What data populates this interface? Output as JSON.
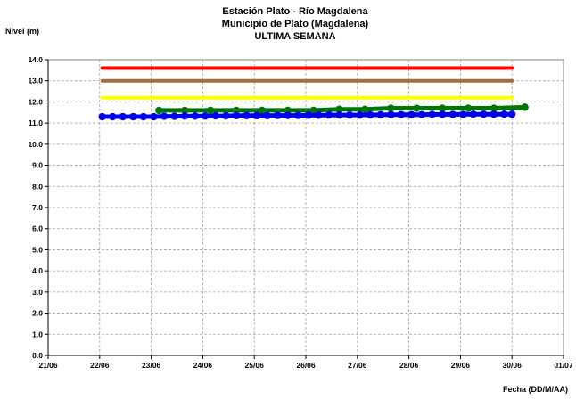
{
  "chart_data": {
    "type": "line",
    "title": [
      "Estación Plato - Río Magdalena",
      "Municipio de Plato (Magdalena)",
      "ULTIMA SEMANA"
    ],
    "ylabel": "Nivel (m)",
    "xlabel": "Fecha (DD/M/AA)",
    "ylim": [
      0,
      14
    ],
    "y_ticks": [
      "0.0",
      "1.0",
      "2.0",
      "3.0",
      "4.0",
      "5.0",
      "6.0",
      "7.0",
      "8.0",
      "9.0",
      "10.0",
      "11.0",
      "12.0",
      "13.0",
      "14.0"
    ],
    "x_ticks": [
      "21/06",
      "22/06",
      "23/06",
      "24/06",
      "25/06",
      "26/06",
      "27/06",
      "28/06",
      "29/06",
      "30/06",
      "01/07"
    ],
    "xlim": [
      0,
      10
    ],
    "grid": true,
    "legend": "none",
    "series": [
      {
        "color": "#ff0000",
        "x": [
          1.05,
          9.0
        ],
        "y": [
          13.6,
          13.6
        ],
        "markers": false
      },
      {
        "color": "#a0703a",
        "x": [
          1.05,
          9.0
        ],
        "y": [
          13.0,
          13.0
        ],
        "markers": false
      },
      {
        "color": "#ffff00",
        "x": [
          1.05,
          9.0
        ],
        "y": [
          12.2,
          12.2
        ],
        "markers": false
      },
      {
        "color": "#007700",
        "x": [
          2.15,
          2.65,
          3.15,
          3.65,
          4.15,
          4.65,
          5.15,
          5.65,
          6.15,
          6.65,
          7.15,
          7.65,
          8.15,
          8.65,
          9.25
        ],
        "y": [
          11.6,
          11.6,
          11.6,
          11.6,
          11.6,
          11.6,
          11.6,
          11.65,
          11.65,
          11.7,
          11.7,
          11.7,
          11.7,
          11.7,
          11.75
        ],
        "markers": true
      },
      {
        "color": "#0000ee",
        "x": [
          1.05,
          1.25,
          1.45,
          1.65,
          1.85,
          2.05,
          2.25,
          2.45,
          2.65,
          2.85,
          3.05,
          3.25,
          3.45,
          3.65,
          3.85,
          4.05,
          4.25,
          4.45,
          4.65,
          4.85,
          5.05,
          5.25,
          5.45,
          5.65,
          5.85,
          6.05,
          6.25,
          6.45,
          6.65,
          6.85,
          7.05,
          7.25,
          7.45,
          7.65,
          7.85,
          8.05,
          8.25,
          8.45,
          8.65,
          8.85,
          9.0
        ],
        "y": [
          11.3,
          11.3,
          11.3,
          11.3,
          11.3,
          11.3,
          11.32,
          11.32,
          11.33,
          11.33,
          11.33,
          11.34,
          11.34,
          11.35,
          11.35,
          11.35,
          11.35,
          11.36,
          11.36,
          11.36,
          11.37,
          11.37,
          11.38,
          11.38,
          11.38,
          11.38,
          11.39,
          11.39,
          11.4,
          11.4,
          11.4,
          11.4,
          11.41,
          11.41,
          11.41,
          11.41,
          11.42,
          11.42,
          11.42,
          11.42,
          11.42
        ],
        "markers": true
      }
    ]
  }
}
